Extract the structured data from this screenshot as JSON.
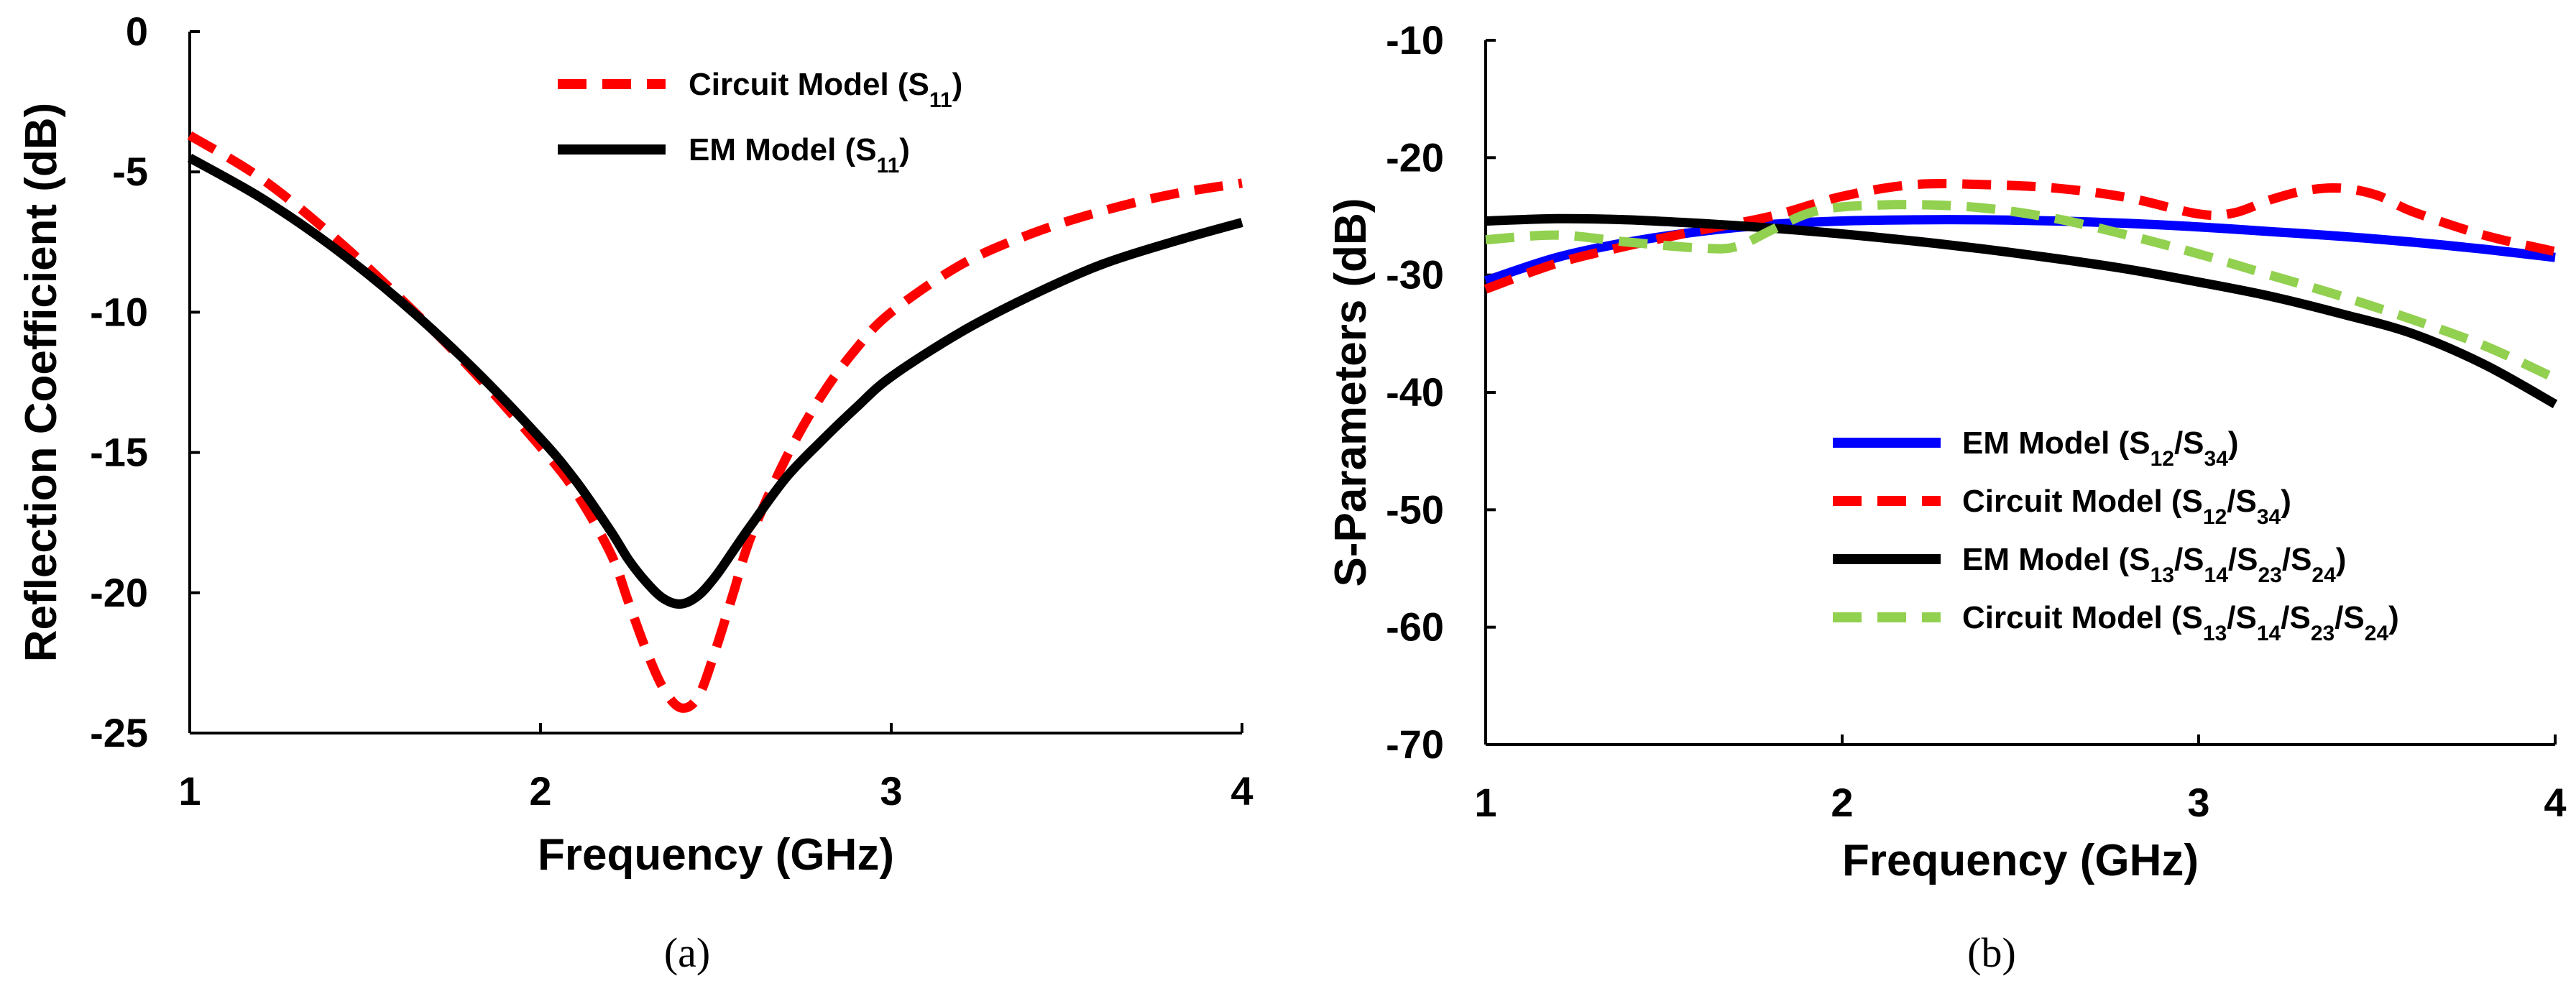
{
  "chart_data": [
    {
      "id": "a",
      "type": "line",
      "caption": "(a)",
      "title": "",
      "xlabel": "Frequency (GHz)",
      "ylabel": "Reflection Coefficient (dB)",
      "xlim": [
        1,
        4
      ],
      "ylim": [
        -25,
        0
      ],
      "xticks": [
        1,
        2,
        3,
        4
      ],
      "yticks": [
        0,
        -5,
        -10,
        -15,
        -20,
        -25
      ],
      "grid": false,
      "legend_position": "top-center",
      "series": [
        {
          "name": "Circuit Model (S11)",
          "label_parts": [
            {
              "t": "Circuit Model (S"
            },
            {
              "sub": "11"
            },
            {
              "t": ")"
            }
          ],
          "color": "#ff0000",
          "dash": true,
          "x": [
            1.0,
            1.2,
            1.4,
            1.6,
            1.8,
            2.0,
            2.1,
            2.2,
            2.25,
            2.3,
            2.35,
            2.4,
            2.45,
            2.5,
            2.55,
            2.6,
            2.7,
            2.8,
            2.9,
            3.0,
            3.2,
            3.4,
            3.6,
            3.8,
            4.0
          ],
          "y": [
            -3.7,
            -5.2,
            -7.2,
            -9.5,
            -12.0,
            -14.8,
            -16.4,
            -18.6,
            -20.3,
            -22.0,
            -23.4,
            -24.1,
            -23.7,
            -22.0,
            -20.0,
            -18.0,
            -15.2,
            -13.0,
            -11.3,
            -10.0,
            -8.3,
            -7.2,
            -6.4,
            -5.8,
            -5.4
          ]
        },
        {
          "name": "EM Model (S11)",
          "label_parts": [
            {
              "t": "EM Model (S"
            },
            {
              "sub": "11"
            },
            {
              "t": ")"
            }
          ],
          "color": "#000000",
          "dash": false,
          "x": [
            1.0,
            1.2,
            1.4,
            1.6,
            1.8,
            2.0,
            2.1,
            2.2,
            2.25,
            2.3,
            2.35,
            2.4,
            2.45,
            2.5,
            2.55,
            2.6,
            2.7,
            2.8,
            2.9,
            3.0,
            3.2,
            3.4,
            3.6,
            3.8,
            4.0
          ],
          "y": [
            -4.5,
            -5.9,
            -7.6,
            -9.6,
            -11.9,
            -14.5,
            -16.0,
            -17.8,
            -18.8,
            -19.6,
            -20.2,
            -20.4,
            -20.1,
            -19.4,
            -18.5,
            -17.6,
            -15.9,
            -14.6,
            -13.4,
            -12.3,
            -10.7,
            -9.4,
            -8.3,
            -7.5,
            -6.8
          ]
        }
      ]
    },
    {
      "id": "b",
      "type": "line",
      "caption": "(b)",
      "title": "",
      "xlabel": "Frequency (GHz)",
      "ylabel": "S-Parameters (dB)",
      "xlim": [
        1,
        4
      ],
      "ylim": [
        -70,
        -10
      ],
      "xticks": [
        1,
        2,
        3,
        4
      ],
      "yticks": [
        -10,
        -20,
        -30,
        -40,
        -50,
        -60,
        -70
      ],
      "grid": false,
      "legend_position": "center-right",
      "series": [
        {
          "name": "EM Model (S12/S34)",
          "label_parts": [
            {
              "t": "EM Model (S"
            },
            {
              "sub": "12"
            },
            {
              "t": "/S"
            },
            {
              "sub": "34"
            },
            {
              "t": ")"
            }
          ],
          "color": "#0000ff",
          "dash": false,
          "x": [
            1.0,
            1.2,
            1.4,
            1.6,
            1.8,
            2.0,
            2.2,
            2.4,
            2.6,
            2.8,
            3.0,
            3.2,
            3.4,
            3.6,
            3.8,
            4.0
          ],
          "y": [
            -30.5,
            -28.5,
            -27.2,
            -26.3,
            -25.7,
            -25.4,
            -25.3,
            -25.3,
            -25.4,
            -25.6,
            -25.9,
            -26.3,
            -26.7,
            -27.2,
            -27.8,
            -28.5
          ]
        },
        {
          "name": "Circuit Model (S12/S34)",
          "label_parts": [
            {
              "t": "Circuit Model (S"
            },
            {
              "sub": "12"
            },
            {
              "t": "/S"
            },
            {
              "sub": "34"
            },
            {
              "t": ")"
            }
          ],
          "color": "#ff0000",
          "dash": true,
          "x": [
            1.0,
            1.2,
            1.4,
            1.6,
            1.8,
            2.0,
            2.2,
            2.4,
            2.6,
            2.8,
            3.0,
            3.1,
            3.2,
            3.3,
            3.4,
            3.5,
            3.6,
            3.8,
            4.0
          ],
          "y": [
            -31.2,
            -29.0,
            -27.5,
            -26.2,
            -25.0,
            -23.3,
            -22.3,
            -22.3,
            -22.6,
            -23.4,
            -24.8,
            -24.7,
            -23.6,
            -22.8,
            -22.6,
            -23.2,
            -24.6,
            -26.6,
            -28.0
          ]
        },
        {
          "name": "EM Model (S13/S14/S23/S24)",
          "label_parts": [
            {
              "t": "EM Model (S"
            },
            {
              "sub": "13"
            },
            {
              "t": "/S"
            },
            {
              "sub": "14"
            },
            {
              "t": "/S"
            },
            {
              "sub": "23"
            },
            {
              "t": "/S"
            },
            {
              "sub": "24"
            },
            {
              "t": ")"
            }
          ],
          "color": "#000000",
          "dash": false,
          "x": [
            1.0,
            1.2,
            1.4,
            1.6,
            1.8,
            2.0,
            2.2,
            2.4,
            2.6,
            2.8,
            3.0,
            3.2,
            3.4,
            3.6,
            3.8,
            4.0
          ],
          "y": [
            -25.4,
            -25.2,
            -25.3,
            -25.6,
            -26.0,
            -26.5,
            -27.1,
            -27.8,
            -28.6,
            -29.5,
            -30.6,
            -31.8,
            -33.3,
            -35.0,
            -37.6,
            -41.0
          ]
        },
        {
          "name": "Circuit Model (S13/S14/S23/S24)",
          "label_parts": [
            {
              "t": "Circuit Model (S"
            },
            {
              "sub": "13"
            },
            {
              "t": "/S"
            },
            {
              "sub": "14"
            },
            {
              "t": "/S"
            },
            {
              "sub": "23"
            },
            {
              "t": "/S"
            },
            {
              "sub": "24"
            },
            {
              "t": ")"
            }
          ],
          "color": "#92d050",
          "dash": true,
          "x": [
            1.0,
            1.2,
            1.4,
            1.6,
            1.7,
            1.8,
            1.9,
            2.0,
            2.2,
            2.4,
            2.6,
            2.8,
            3.0,
            3.2,
            3.4,
            3.6,
            3.8,
            4.0
          ],
          "y": [
            -27.0,
            -26.6,
            -27.2,
            -27.7,
            -27.6,
            -26.2,
            -24.8,
            -24.2,
            -24.0,
            -24.3,
            -25.2,
            -26.6,
            -28.2,
            -30.0,
            -31.8,
            -33.8,
            -36.0,
            -38.8
          ]
        }
      ]
    }
  ]
}
